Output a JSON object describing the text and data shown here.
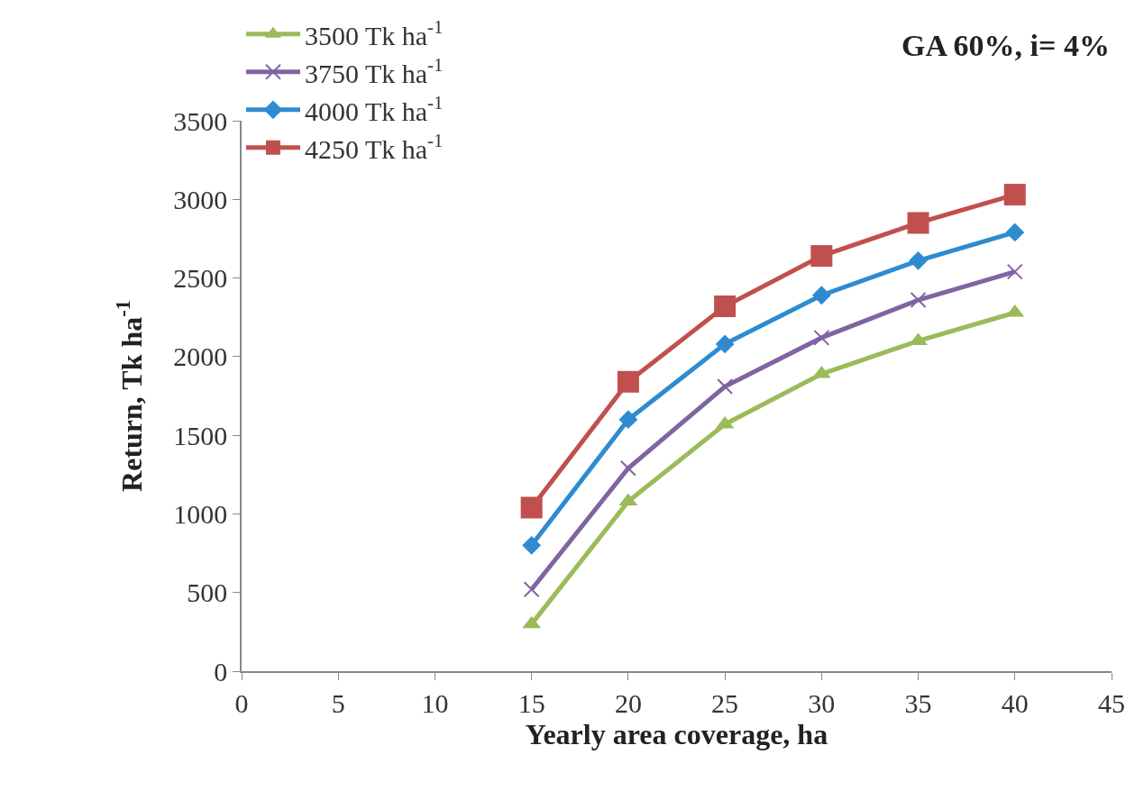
{
  "chart_data": {
    "type": "line",
    "xlabel": "Yearly area coverage, ha",
    "ylabel": "Return, Tk ha$^{-1}$",
    "annotations": [
      "GA 60%, i= 4%"
    ],
    "x": [
      15,
      20,
      25,
      30,
      35,
      40
    ],
    "series": [
      {
        "name": "3500 Tk ha$^{-1}$",
        "color": "#9bbb59",
        "marker": "triangle",
        "values": [
          300,
          1080,
          1570,
          1890,
          2100,
          2280
        ]
      },
      {
        "name": "3750 Tk ha$^{-1}$",
        "color": "#8064a2",
        "marker": "cross",
        "values": [
          520,
          1290,
          1810,
          2120,
          2360,
          2540
        ]
      },
      {
        "name": "4000 Tk ha$^{-1}$",
        "color": "#2e8bd0",
        "marker": "diamond",
        "values": [
          800,
          1600,
          2080,
          2390,
          2610,
          2790
        ]
      },
      {
        "name": "4250 Tk ha$^{-1}$",
        "color": "#c0504d",
        "marker": "square",
        "values": [
          1040,
          1840,
          2320,
          2640,
          2850,
          3030
        ]
      }
    ],
    "xlim": [
      0,
      45
    ],
    "xticks": [
      0,
      5,
      10,
      15,
      20,
      25,
      30,
      35,
      40,
      45
    ],
    "ylim": [
      0,
      3500
    ],
    "yticks": [
      0,
      500,
      1000,
      1500,
      2000,
      2500,
      3000,
      3500
    ],
    "grid": false,
    "legend": "top left"
  }
}
